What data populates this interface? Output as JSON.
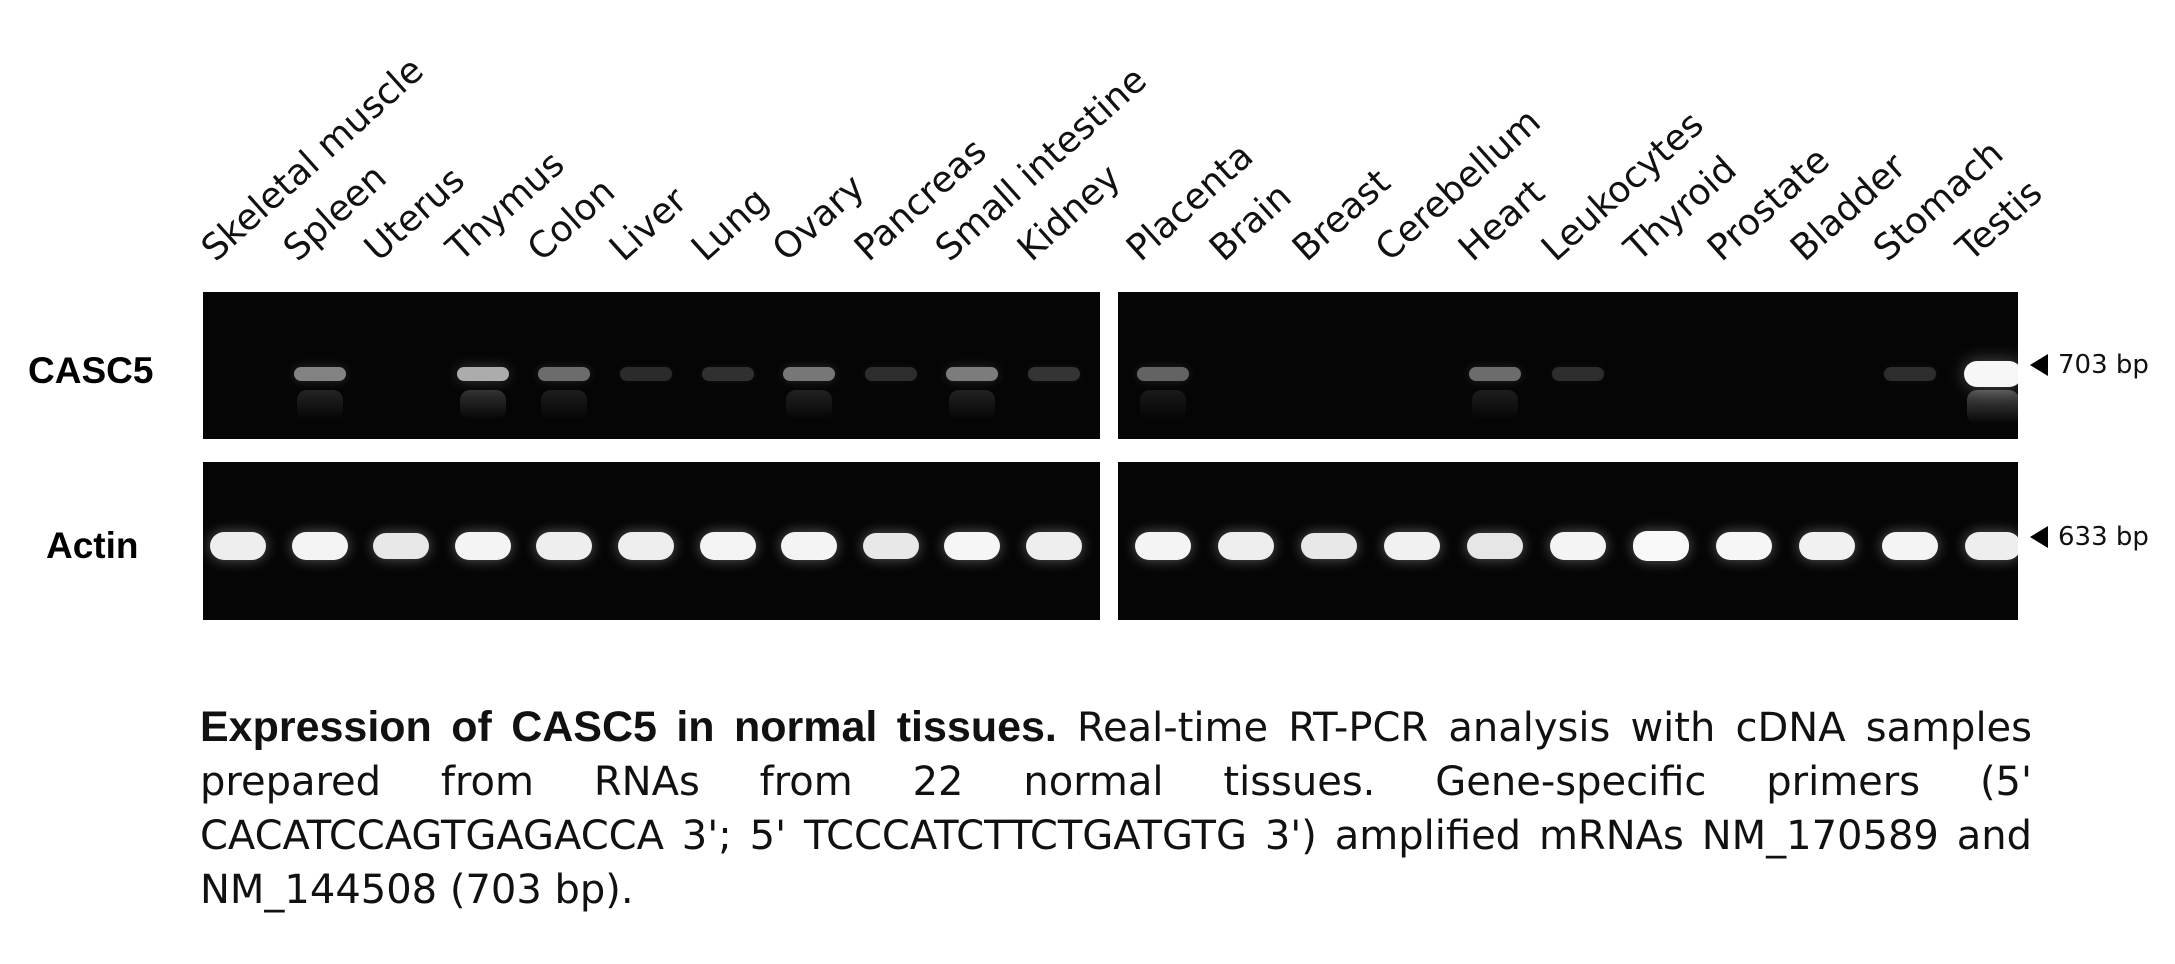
{
  "figure": {
    "lanes": [
      {
        "label": "Skeletal muscle",
        "casc5": 0.0,
        "actin": 0.85
      },
      {
        "label": "Spleen",
        "casc5": 0.45,
        "actin": 0.9
      },
      {
        "label": "Uterus",
        "casc5": 0.0,
        "actin": 0.8
      },
      {
        "label": "Thymus",
        "casc5": 0.65,
        "actin": 0.9
      },
      {
        "label": "Colon",
        "casc5": 0.35,
        "actin": 0.85
      },
      {
        "label": "Liver",
        "casc5": 0.04,
        "actin": 0.85
      },
      {
        "label": "Lung",
        "casc5": 0.06,
        "actin": 0.9
      },
      {
        "label": "Ovary",
        "casc5": 0.4,
        "actin": 0.9
      },
      {
        "label": "Pancreas",
        "casc5": 0.05,
        "actin": 0.8
      },
      {
        "label": "Small intestine",
        "casc5": 0.42,
        "actin": 0.92
      },
      {
        "label": "Kidney",
        "casc5": 0.08,
        "actin": 0.85
      },
      {
        "label": "Placenta",
        "casc5": 0.3,
        "actin": 0.9
      },
      {
        "label": "Brain",
        "casc5": 0.0,
        "actin": 0.85
      },
      {
        "label": "Breast",
        "casc5": 0.0,
        "actin": 0.8
      },
      {
        "label": "Cerebellum",
        "casc5": 0.0,
        "actin": 0.88
      },
      {
        "label": "Heart",
        "casc5": 0.35,
        "actin": 0.78
      },
      {
        "label": "Leukocytes",
        "casc5": 0.05,
        "actin": 0.9
      },
      {
        "label": "Thyroid",
        "casc5": 0.0,
        "actin": 0.95
      },
      {
        "label": "Prostate",
        "casc5": 0.0,
        "actin": 0.92
      },
      {
        "label": "Bladder",
        "casc5": 0.0,
        "actin": 0.88
      },
      {
        "label": "Stomach",
        "casc5": 0.05,
        "actin": 0.9
      },
      {
        "label": "Testis",
        "casc5": 1.0,
        "actin": 0.85
      }
    ],
    "rows": {
      "casc5": {
        "label": "CASC5",
        "marker": "703 bp"
      },
      "actin": {
        "label": "Actin",
        "marker": "633 bp"
      }
    }
  },
  "caption": {
    "title": "Expression of CASC5 in normal tissues.",
    "body": "Real-time RT-PCR analysis with cDNA samples prepared from RNAs from 22 normal tissues. Gene-specific primers (5' CACATCCAGTGAGACCA 3'; 5' TCCCATCTTCTGATGTG 3') amplified mRNAs NM_170589 and NM_144508 (703 bp)."
  },
  "colors": {
    "gel_background": "#050505",
    "band": "#ffffff",
    "text": "#111111"
  }
}
